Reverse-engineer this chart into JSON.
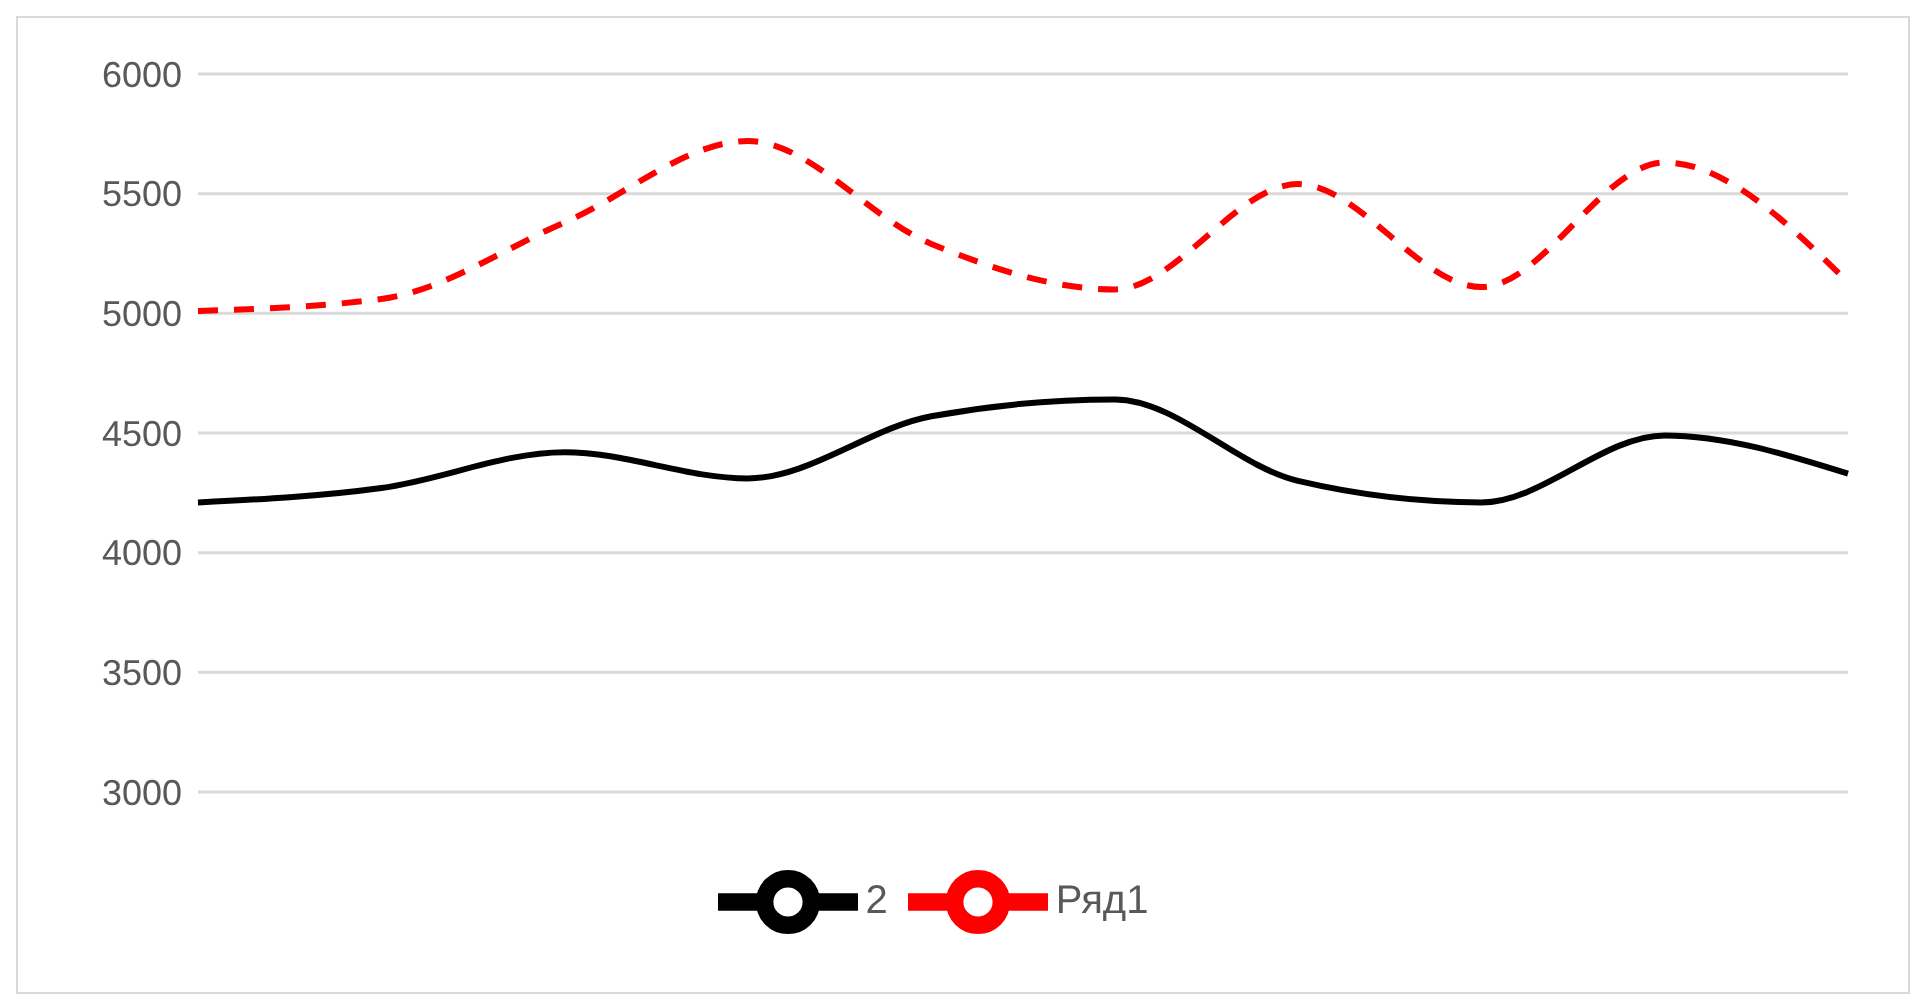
{
  "chart_data": {
    "type": "line",
    "categories": [
      null,
      null,
      null,
      null,
      null,
      null,
      null,
      null,
      null,
      null
    ],
    "series": [
      {
        "name": "Ряд1",
        "color": "#ff0000",
        "line_style": "dashed",
        "values": [
          5010,
          5060,
          5380,
          5720,
          5290,
          5100,
          5540,
          5110,
          5630,
          5130
        ]
      },
      {
        "name": "2",
        "color": "#000000",
        "line_style": "solid",
        "values": [
          4210,
          4270,
          4420,
          4310,
          4570,
          4640,
          4300,
          4210,
          4490,
          4330
        ]
      }
    ],
    "ylim": [
      3000,
      6000
    ],
    "yticks": [
      3000,
      3500,
      4000,
      4500,
      5000,
      5500,
      6000
    ],
    "grid": "y",
    "legend": "bottom",
    "marker": "none"
  }
}
